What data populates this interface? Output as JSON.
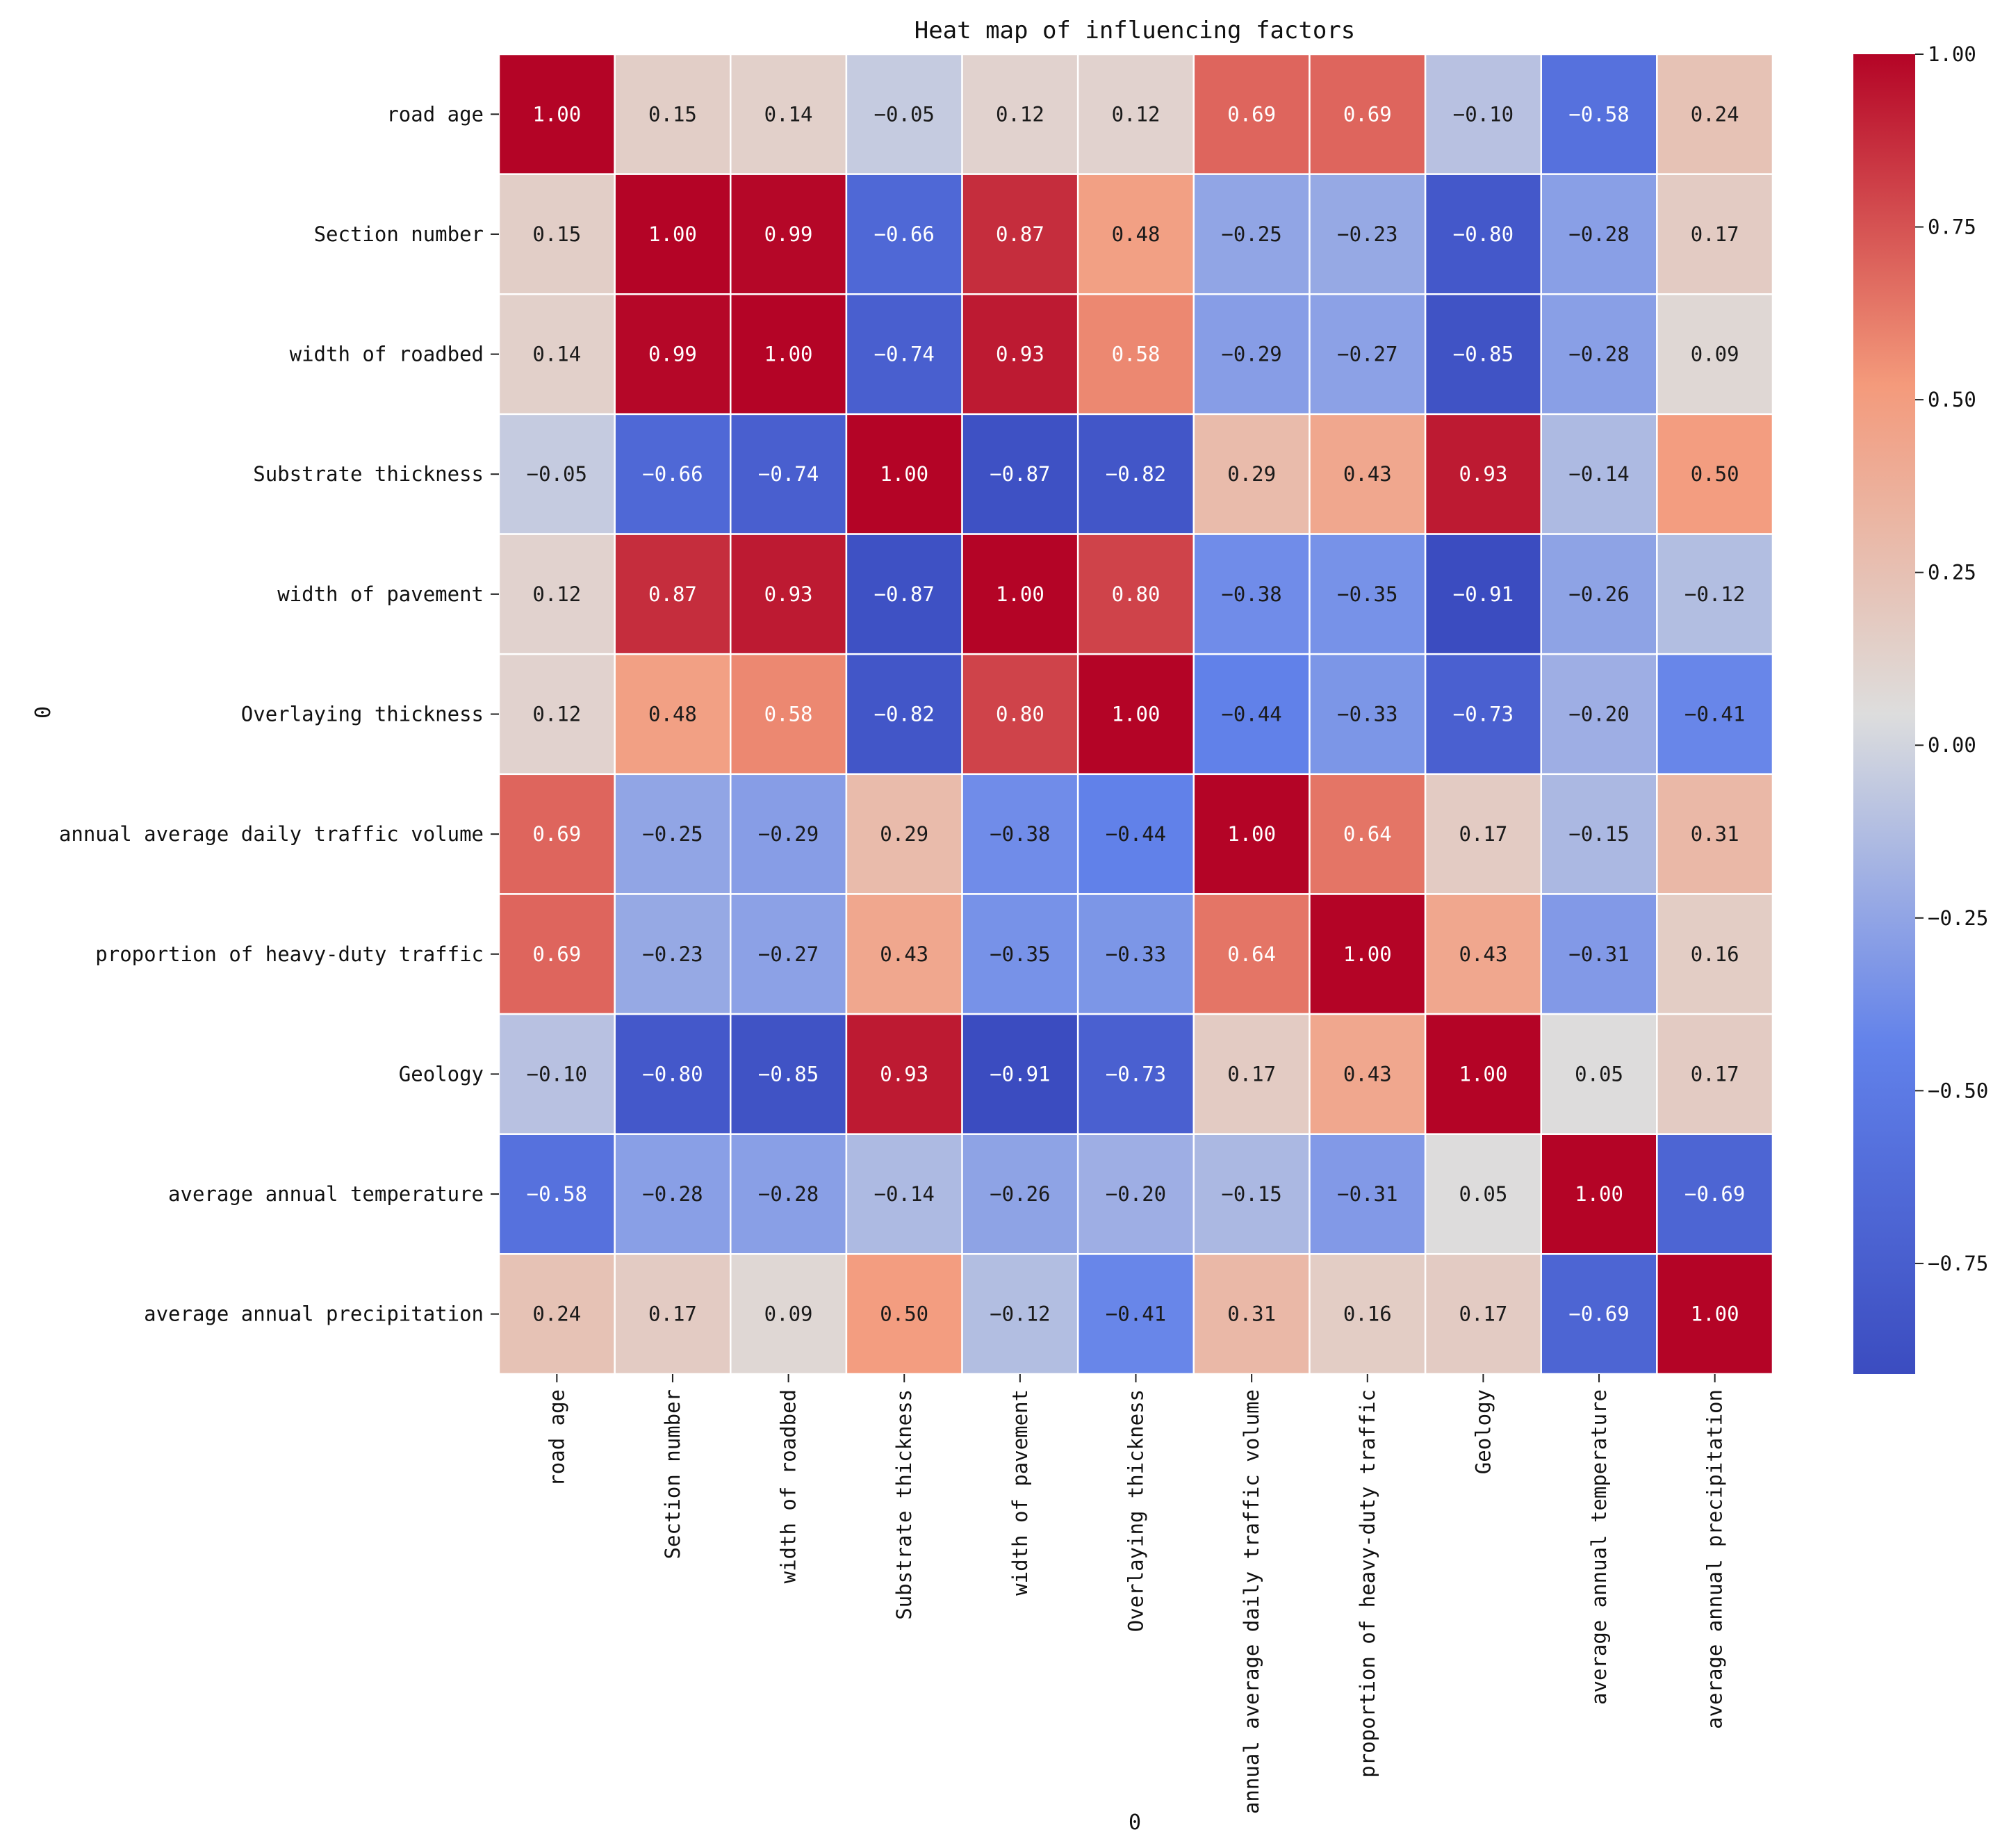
{
  "chart_data": {
    "type": "heatmap",
    "title": "Heat map of influencing factors",
    "xlabel": "0",
    "ylabel": "0",
    "value_format": "2 decimals",
    "colormap": "coolwarm",
    "colors": {
      "low": "#3b4cc0",
      "mid": "#dddddd",
      "high": "#b40426"
    },
    "vmin": -0.91,
    "vmax": 1.0,
    "colorbar_ticks": [
      1.0,
      0.75,
      0.5,
      0.25,
      0.0,
      -0.25,
      -0.5,
      -0.75
    ],
    "colorbar_tick_labels": [
      "1.00",
      "0.75",
      "0.50",
      "0.25",
      "0.00",
      "−0.25",
      "−0.50",
      "−0.75"
    ],
    "row_labels": [
      "road age",
      "Section number",
      "width of roadbed",
      "Substrate thickness",
      "width of pavement",
      "Overlaying thickness",
      "annual average daily traffic volume",
      "proportion of heavy-duty traffic",
      "Geology",
      "average annual temperature",
      "average annual precipitation"
    ],
    "col_labels": [
      "road age",
      "Section number",
      "width of roadbed",
      "Substrate thickness",
      "width of pavement",
      "Overlaying thickness",
      "annual average daily traffic volume",
      "proportion of heavy-duty traffic",
      "Geology",
      "average annual temperature",
      "average annual precipitation"
    ],
    "values": [
      [
        1.0,
        0.15,
        0.14,
        -0.05,
        0.12,
        0.12,
        0.69,
        0.69,
        -0.1,
        -0.58,
        0.24
      ],
      [
        0.15,
        1.0,
        0.99,
        -0.66,
        0.87,
        0.48,
        -0.25,
        -0.23,
        -0.8,
        -0.28,
        0.17
      ],
      [
        0.14,
        0.99,
        1.0,
        -0.74,
        0.93,
        0.58,
        -0.29,
        -0.27,
        -0.85,
        -0.28,
        0.09
      ],
      [
        -0.05,
        -0.66,
        -0.74,
        1.0,
        -0.87,
        -0.82,
        0.29,
        0.43,
        0.93,
        -0.14,
        0.5
      ],
      [
        0.12,
        0.87,
        0.93,
        -0.87,
        1.0,
        0.8,
        -0.38,
        -0.35,
        -0.91,
        -0.26,
        -0.12
      ],
      [
        0.12,
        0.48,
        0.58,
        -0.82,
        0.8,
        1.0,
        -0.44,
        -0.33,
        -0.73,
        -0.2,
        -0.41
      ],
      [
        0.69,
        -0.25,
        -0.29,
        0.29,
        -0.38,
        -0.44,
        1.0,
        0.64,
        0.17,
        -0.15,
        0.31
      ],
      [
        0.69,
        -0.23,
        -0.27,
        0.43,
        -0.35,
        -0.33,
        0.64,
        1.0,
        0.43,
        -0.31,
        0.16
      ],
      [
        -0.1,
        -0.8,
        -0.85,
        0.93,
        -0.91,
        -0.73,
        0.17,
        0.43,
        1.0,
        0.05,
        0.17
      ],
      [
        -0.58,
        -0.28,
        -0.28,
        -0.14,
        -0.26,
        -0.2,
        -0.15,
        -0.31,
        0.05,
        1.0,
        -0.69
      ],
      [
        0.24,
        0.17,
        0.09,
        0.5,
        -0.12,
        -0.41,
        0.31,
        0.16,
        0.17,
        -0.69,
        1.0
      ]
    ]
  }
}
